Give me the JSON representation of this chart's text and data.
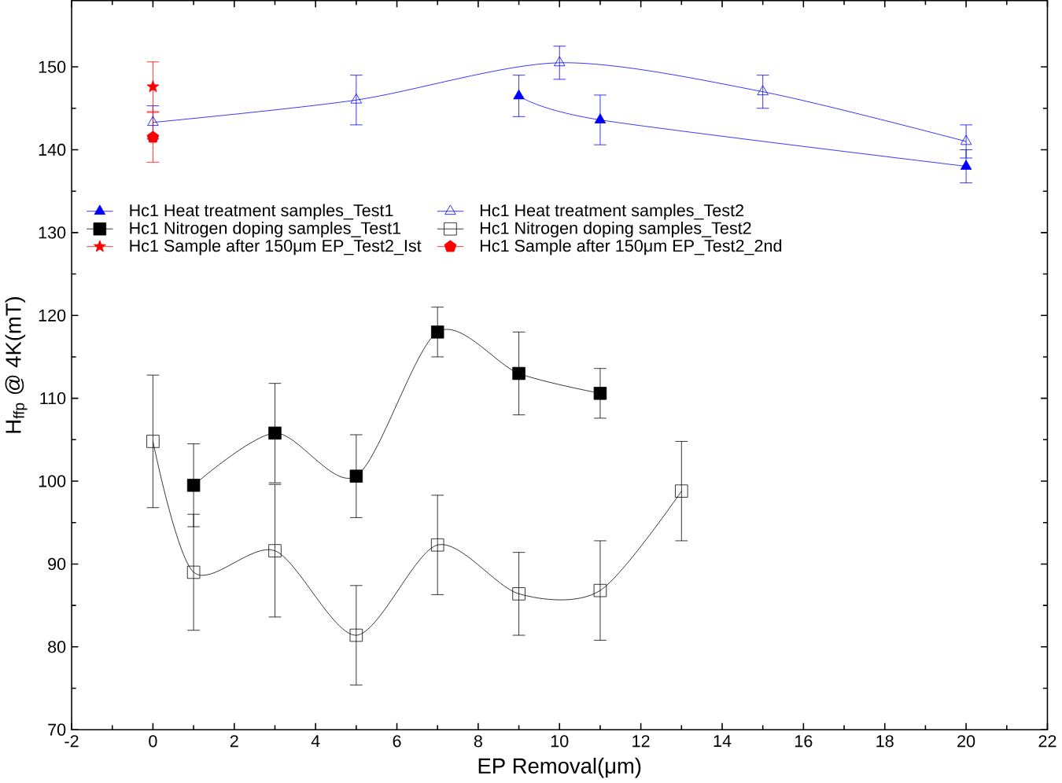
{
  "chart_data": {
    "type": "line",
    "xlabel": "EP Removal(μm)",
    "ylabel": "H$_{ffp}$ @ 4K(mT)",
    "xlim": [
      -2,
      22
    ],
    "ylim": [
      70,
      158
    ],
    "xticks": [
      -2,
      0,
      2,
      4,
      6,
      8,
      10,
      12,
      14,
      16,
      18,
      20,
      22
    ],
    "yticks": [
      70,
      80,
      90,
      100,
      110,
      120,
      130,
      140,
      150
    ],
    "legend": "top left",
    "grid": false,
    "series": [
      {
        "name": "Hc1 Heat treatment samples_Test1",
        "color": "#0000ff",
        "marker": "triangle",
        "x": [
          9,
          11,
          20
        ],
        "values": [
          146.5,
          143.6,
          138
        ],
        "errors": [
          2.5,
          3,
          2
        ]
      },
      {
        "name": "Hc1 Heat treatment samples_Test2",
        "color": "#0000ff",
        "marker": "triangle-open",
        "x": [
          0,
          5,
          10,
          15,
          20
        ],
        "values": [
          143.3,
          146,
          150.5,
          147,
          141
        ],
        "errors": [
          2,
          3,
          2,
          2,
          2
        ]
      },
      {
        "name": "Hc1 Nitrogen doping samples_Test1",
        "color": "#000000",
        "marker": "square",
        "x": [
          1,
          3,
          5,
          7,
          9,
          11
        ],
        "values": [
          99.5,
          105.8,
          100.6,
          118,
          113,
          110.6
        ],
        "errors": [
          5,
          6,
          5,
          3,
          5,
          3
        ]
      },
      {
        "name": "Hc1 Nitrogen doping samples_Test2",
        "color": "#000000",
        "marker": "square-open",
        "x": [
          0,
          1,
          3,
          5,
          7,
          9,
          11,
          13
        ],
        "values": [
          104.8,
          89,
          91.6,
          81.4,
          92.3,
          86.4,
          86.8,
          98.8
        ],
        "errors": [
          8,
          7,
          8,
          6,
          6,
          5,
          6,
          6
        ]
      },
      {
        "name": "Hc1 Sample after 150μm EP_Test2_Ist",
        "color": "#ff0000",
        "type": "scatter",
        "marker": "star",
        "x": [
          0
        ],
        "values": [
          147.6
        ],
        "errors": [
          3
        ]
      },
      {
        "name": "Hc1 Sample after 150μm EP_Test2_2nd",
        "color": "#ff0000",
        "type": "scatter",
        "x": [
          0
        ],
        "values": [
          141.5
        ],
        "errors": [
          3
        ]
      }
    ]
  }
}
